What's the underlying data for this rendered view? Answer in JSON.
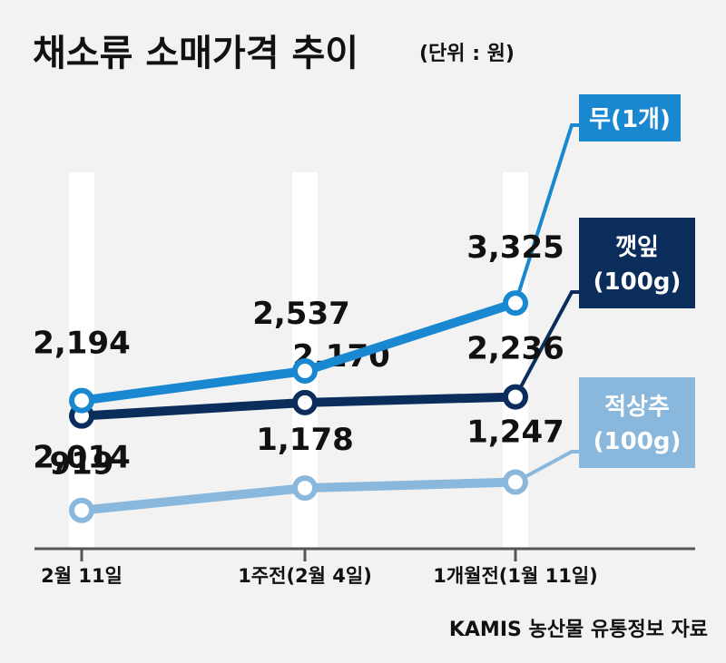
{
  "title": "채소류 소매가격 추이",
  "unit": "(단위 : 원)",
  "source": "KAMIS 농산물 유통정보 자료",
  "chart_data": {
    "type": "line",
    "categories": [
      "2월 11일",
      "1주전(2월 4일)",
      "1개월전(1월 11일)"
    ],
    "series": [
      {
        "name": "무(1개)",
        "legend": [
          "무(1개)"
        ],
        "values": [
          2194,
          2537,
          3325
        ],
        "labels": [
          "2,194",
          "2,537",
          "3,325"
        ],
        "color": "#1a88d0"
      },
      {
        "name": "깻잎(100g)",
        "legend": [
          "깻잎",
          "(100g)"
        ],
        "values": [
          2014,
          2170,
          2236
        ],
        "labels": [
          "2,014",
          "2,170",
          "2,236"
        ],
        "color": "#0b2d5c"
      },
      {
        "name": "적상추(100g)",
        "legend": [
          "적상추",
          "(100g)"
        ],
        "values": [
          919,
          1178,
          1247
        ],
        "labels": [
          "919",
          "1,178",
          "1,247"
        ],
        "color": "#8ab8dc"
      }
    ]
  }
}
